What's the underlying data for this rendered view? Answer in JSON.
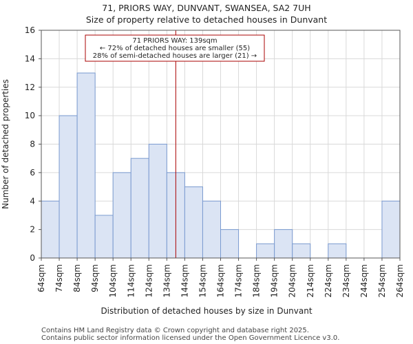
{
  "chart_data": {
    "type": "bar",
    "title": "71, PRIORS WAY, DUNVANT, SWANSEA, SA2 7UH",
    "subtitle": "Size of property relative to detached houses in Dunvant",
    "xlabel": "Distribution of detached houses by size in Dunvant",
    "ylabel": "Number of detached properties",
    "ylim": [
      0,
      16
    ],
    "yticks": [
      0,
      2,
      4,
      6,
      8,
      10,
      12,
      14,
      16
    ],
    "grid": true,
    "bin_edges": [
      "64sqm",
      "74sqm",
      "84sqm",
      "94sqm",
      "104sqm",
      "114sqm",
      "124sqm",
      "134sqm",
      "144sqm",
      "154sqm",
      "164sqm",
      "174sqm",
      "184sqm",
      "194sqm",
      "204sqm",
      "214sqm",
      "224sqm",
      "234sqm",
      "244sqm",
      "254sqm",
      "264sqm"
    ],
    "values": [
      4,
      10,
      13,
      3,
      6,
      7,
      8,
      6,
      5,
      4,
      2,
      0,
      1,
      2,
      1,
      0,
      1,
      0,
      0,
      4
    ],
    "marker": {
      "value_sqm": 139,
      "color": "#aa0000",
      "annotation": [
        "71 PRIORS WAY: 139sqm",
        "← 72% of detached houses are smaller (55)",
        "28% of semi-detached houses are larger (21) →"
      ]
    }
  },
  "footer": {
    "line1": "Contains HM Land Registry data © Crown copyright and database right 2025.",
    "line2": "Contains public sector information licensed under the Open Government Licence v3.0."
  }
}
